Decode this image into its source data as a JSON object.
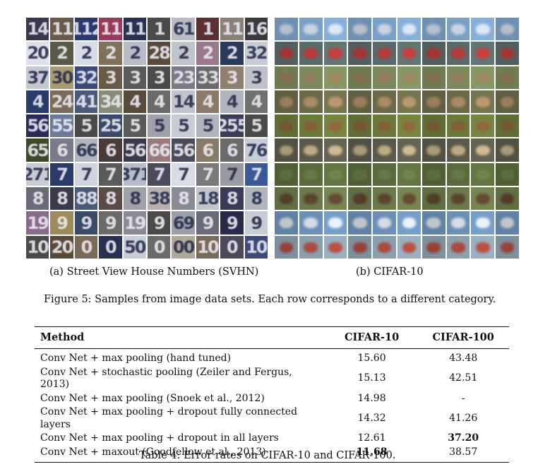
{
  "figure": {
    "panels": [
      {
        "caption": "(a) Street View House Numbers (SVHN)",
        "rows": [
          [
            "14",
            "11",
            "112",
            "11",
            "11",
            "1",
            "61",
            "1",
            "11",
            "16"
          ],
          [
            "20",
            "2",
            "2",
            "2",
            "2",
            "28",
            "2",
            "2",
            "2",
            "32"
          ],
          [
            "37",
            "30",
            "32",
            "3",
            "3",
            "3",
            "23",
            "33",
            "3",
            "3"
          ],
          [
            "4",
            "24",
            "41",
            "34",
            "4",
            "4",
            "14",
            "4",
            "4",
            "4"
          ],
          [
            "56",
            "55",
            "5",
            "25",
            "5",
            "5",
            "5",
            "5",
            "255",
            "5"
          ],
          [
            "65",
            "6",
            "66",
            "6",
            "56",
            "66",
            "56",
            "6",
            "6",
            "76"
          ],
          [
            "271",
            "7",
            "7",
            "7",
            "371",
            "7",
            "7",
            "7",
            "7",
            "7"
          ],
          [
            "8",
            "8",
            "88",
            "8",
            "8",
            "38",
            "8",
            "18",
            "8",
            "8"
          ],
          [
            "19",
            "9",
            "9",
            "9",
            "19",
            "9",
            "69",
            "9",
            "9",
            "9"
          ],
          [
            "10",
            "20",
            "0",
            "0",
            "50",
            "0",
            "00",
            "10",
            "0",
            "10"
          ]
        ],
        "colors": [
          [
            "#3b3550",
            "#6a5a4a",
            "#2a3a6a",
            "#9a3a5a",
            "#2a3050",
            "#4a4a4a",
            "#b8bcc4",
            "#5a3030",
            "#8a8078",
            "#3a3a3a"
          ],
          [
            "#e0e0ea",
            "#5a5a48",
            "#d8dce6",
            "#807058",
            "#b8bcc8",
            "#5a4a3a",
            "#c0c4cc",
            "#9a7a8a",
            "#2a3a5a",
            "#c8ccd4"
          ],
          [
            "#c4c8d0",
            "#aa9a70",
            "#3a4a7a",
            "#6a5a48",
            "#5a5a5a",
            "#4a4a4a",
            "#7a7a86",
            "#6a6a6a",
            "#908070",
            "#c0c0c8"
          ],
          [
            "#2a3a6a",
            "#7a6a5a",
            "#4a5a7a",
            "#8a8a7a",
            "#5a4a3a",
            "#6a6a6a",
            "#c0c4cc",
            "#8a7a6a",
            "#b0b4bc",
            "#707070"
          ],
          [
            "#2a2a5a",
            "#6a7a9a",
            "#4a4a4a",
            "#3a4a6a",
            "#5a5a5a",
            "#a0a0a8",
            "#c8ccd4",
            "#b0b4bc",
            "#3a3a5a",
            "#4a4a4a"
          ],
          [
            "#3a4a2a",
            "#7a7a8a",
            "#b0b4bc",
            "#4a3a3a",
            "#3a3a4a",
            "#9a7a7a",
            "#4a4a5a",
            "#8a7a6a",
            "#6a6a6a",
            "#c8ccd4"
          ],
          [
            "#c8ccd4",
            "#2a3a6a",
            "#d0d4dc",
            "#5a5a5a",
            "#b8bcc8",
            "#4a4a5a",
            "#d8dce4",
            "#7a7a7a",
            "#9a9aa4",
            "#3a5a9a"
          ],
          [
            "#6a6a7a",
            "#3a3a4a",
            "#4a5a7a",
            "#5a4a48",
            "#a0a0a8",
            "#b8b0b0",
            "#8a8a94",
            "#c0c4cc",
            "#3a3a5a",
            "#b0b4bc"
          ],
          [
            "#8a6a8a",
            "#a08a5a",
            "#3a4a6a",
            "#6a6a6a",
            "#8a8a94",
            "#4a4a4a",
            "#9aa0aa",
            "#6a6a7a",
            "#2a2a4a",
            "#c8ccd4"
          ],
          [
            "#4a4a4a",
            "#5a4a3a",
            "#7a6a5a",
            "#2a3050",
            "#c8ccd4",
            "#6a6a6a",
            "#b0a898",
            "#7a6a5a",
            "#4a4a5a",
            "#3a4a7a"
          ]
        ]
      },
      {
        "caption": "(b) CIFAR-10",
        "row_colors": [
          {
            "bg": "#7aa0c8",
            "obj": "#d8dce4"
          },
          {
            "bg": "#5a6a6a",
            "obj": "#c83030"
          },
          {
            "bg": "#7a8a5a",
            "obj": "#9a7a5a"
          },
          {
            "bg": "#6a6a4a",
            "obj": "#b8906a"
          },
          {
            "bg": "#6a7a3a",
            "obj": "#8a5a3a"
          },
          {
            "bg": "#5a5a4a",
            "obj": "#d0b890"
          },
          {
            "bg": "#5a6a3a",
            "obj": "#6a7a4a"
          },
          {
            "bg": "#6a7a4a",
            "obj": "#5a3a2a"
          },
          {
            "bg": "#6a90b8",
            "obj": "#eaeaea"
          },
          {
            "bg": "#8aa0b0",
            "obj": "#b03a2a"
          }
        ]
      }
    ],
    "caption": "Figure 5: Samples from image data sets. Each row corresponds to a different category."
  },
  "table": {
    "headers": [
      "Method",
      "CIFAR-10",
      "CIFAR-100"
    ],
    "rows": [
      {
        "method": "Conv Net + max pooling (hand tuned)",
        "c10": "15.60",
        "c100": "43.48",
        "bold_c10": false,
        "bold_c100": false
      },
      {
        "method": "Conv Net + stochastic pooling (Zeiler and Fergus, 2013)",
        "c10": "15.13",
        "c100": "42.51",
        "bold_c10": false,
        "bold_c100": false
      },
      {
        "method": "Conv Net + max pooling (Snoek et al., 2012)",
        "c10": "14.98",
        "c100": "-",
        "bold_c10": false,
        "bold_c100": false
      },
      {
        "method": "Conv Net + max pooling + dropout fully connected layers",
        "c10": "14.32",
        "c100": "41.26",
        "bold_c10": false,
        "bold_c100": false
      },
      {
        "method": "Conv Net + max pooling + dropout in all layers",
        "c10": "12.61",
        "c100": "37.20",
        "bold_c10": false,
        "bold_c100": true
      },
      {
        "method": "Conv Net + maxout (Goodfellow et al., 2013)",
        "c10": "11.68",
        "c100": "38.57",
        "bold_c10": true,
        "bold_c100": false
      }
    ],
    "caption": "Table 4: Error rates on CIFAR-10 and CIFAR-100."
  }
}
